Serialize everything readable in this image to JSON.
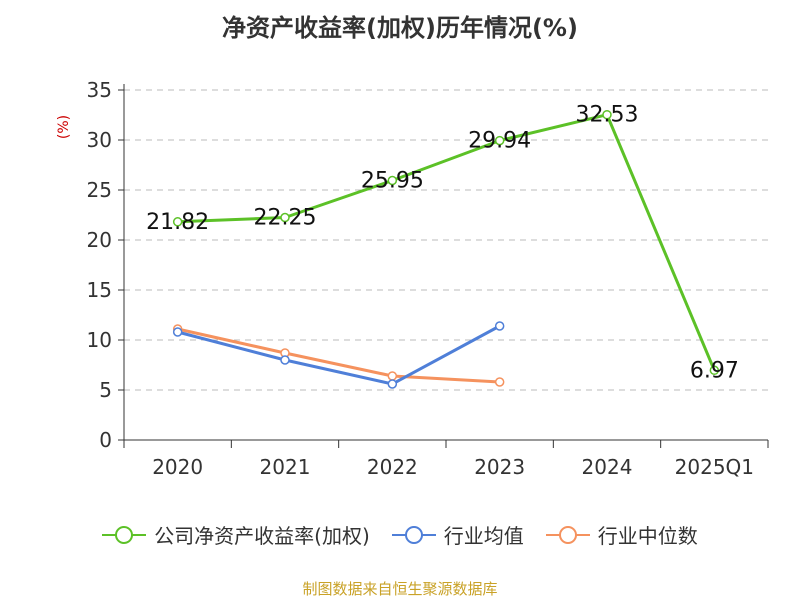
{
  "title": "净资产收益率(加权)历年情况(%)",
  "source": "制图数据来自恒生聚源数据库",
  "chart_data": {
    "type": "line",
    "categories": [
      "2020",
      "2021",
      "2022",
      "2023",
      "2024",
      "2025Q1"
    ],
    "ylabel": "(%)",
    "ylim": [
      0,
      35
    ],
    "yticks": [
      0,
      5,
      10,
      15,
      20,
      25,
      30,
      35
    ],
    "grid": true,
    "legend_position": "bottom",
    "series": [
      {
        "name": "公司净资产收益率(加权)",
        "color": "#5cc127",
        "values": [
          21.82,
          22.25,
          25.95,
          29.94,
          32.53,
          6.97
        ],
        "labels": [
          "21.82",
          "22.25",
          "25.95",
          "29.94",
          "32.53",
          "6.97"
        ]
      },
      {
        "name": "行业均值",
        "color": "#4f7fd8",
        "values": [
          10.8,
          8.0,
          5.6,
          11.4,
          null,
          null
        ]
      },
      {
        "name": "行业中位数",
        "color": "#f5925e",
        "values": [
          11.1,
          8.7,
          6.4,
          5.8,
          null,
          null
        ]
      }
    ]
  }
}
